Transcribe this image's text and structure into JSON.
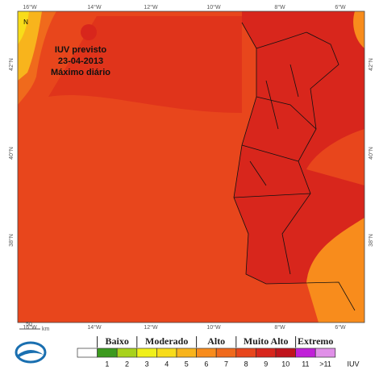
{
  "map": {
    "title": [
      "IUV previsto",
      "23-04-2013",
      "Máximo diário"
    ],
    "north": "N",
    "lon_labels": [
      "16°W",
      "14°W",
      "12°W",
      "10°W",
      "8°W",
      "6°W"
    ],
    "lat_labels": [
      "42°N",
      "40°N",
      "38°N"
    ],
    "scale": {
      "value": "50",
      "unit": "km"
    }
  },
  "legend": {
    "groups": [
      "Baixo",
      "Moderado",
      "Alto",
      "Muito Alto",
      "Extremo"
    ],
    "colors": [
      "#ffffff",
      "#3c9a1e",
      "#a8d21c",
      "#f0f01a",
      "#f8dc1a",
      "#f8b41c",
      "#f88c1c",
      "#f06a1c",
      "#e8461c",
      "#d8261c",
      "#c0141c",
      "#c020d8",
      "#e090e8"
    ],
    "labels": [
      null,
      "1",
      "2",
      "3",
      "4",
      "5",
      "6",
      "7",
      "8",
      "9",
      "10",
      "11",
      ">11"
    ],
    "unit": "IUV"
  }
}
